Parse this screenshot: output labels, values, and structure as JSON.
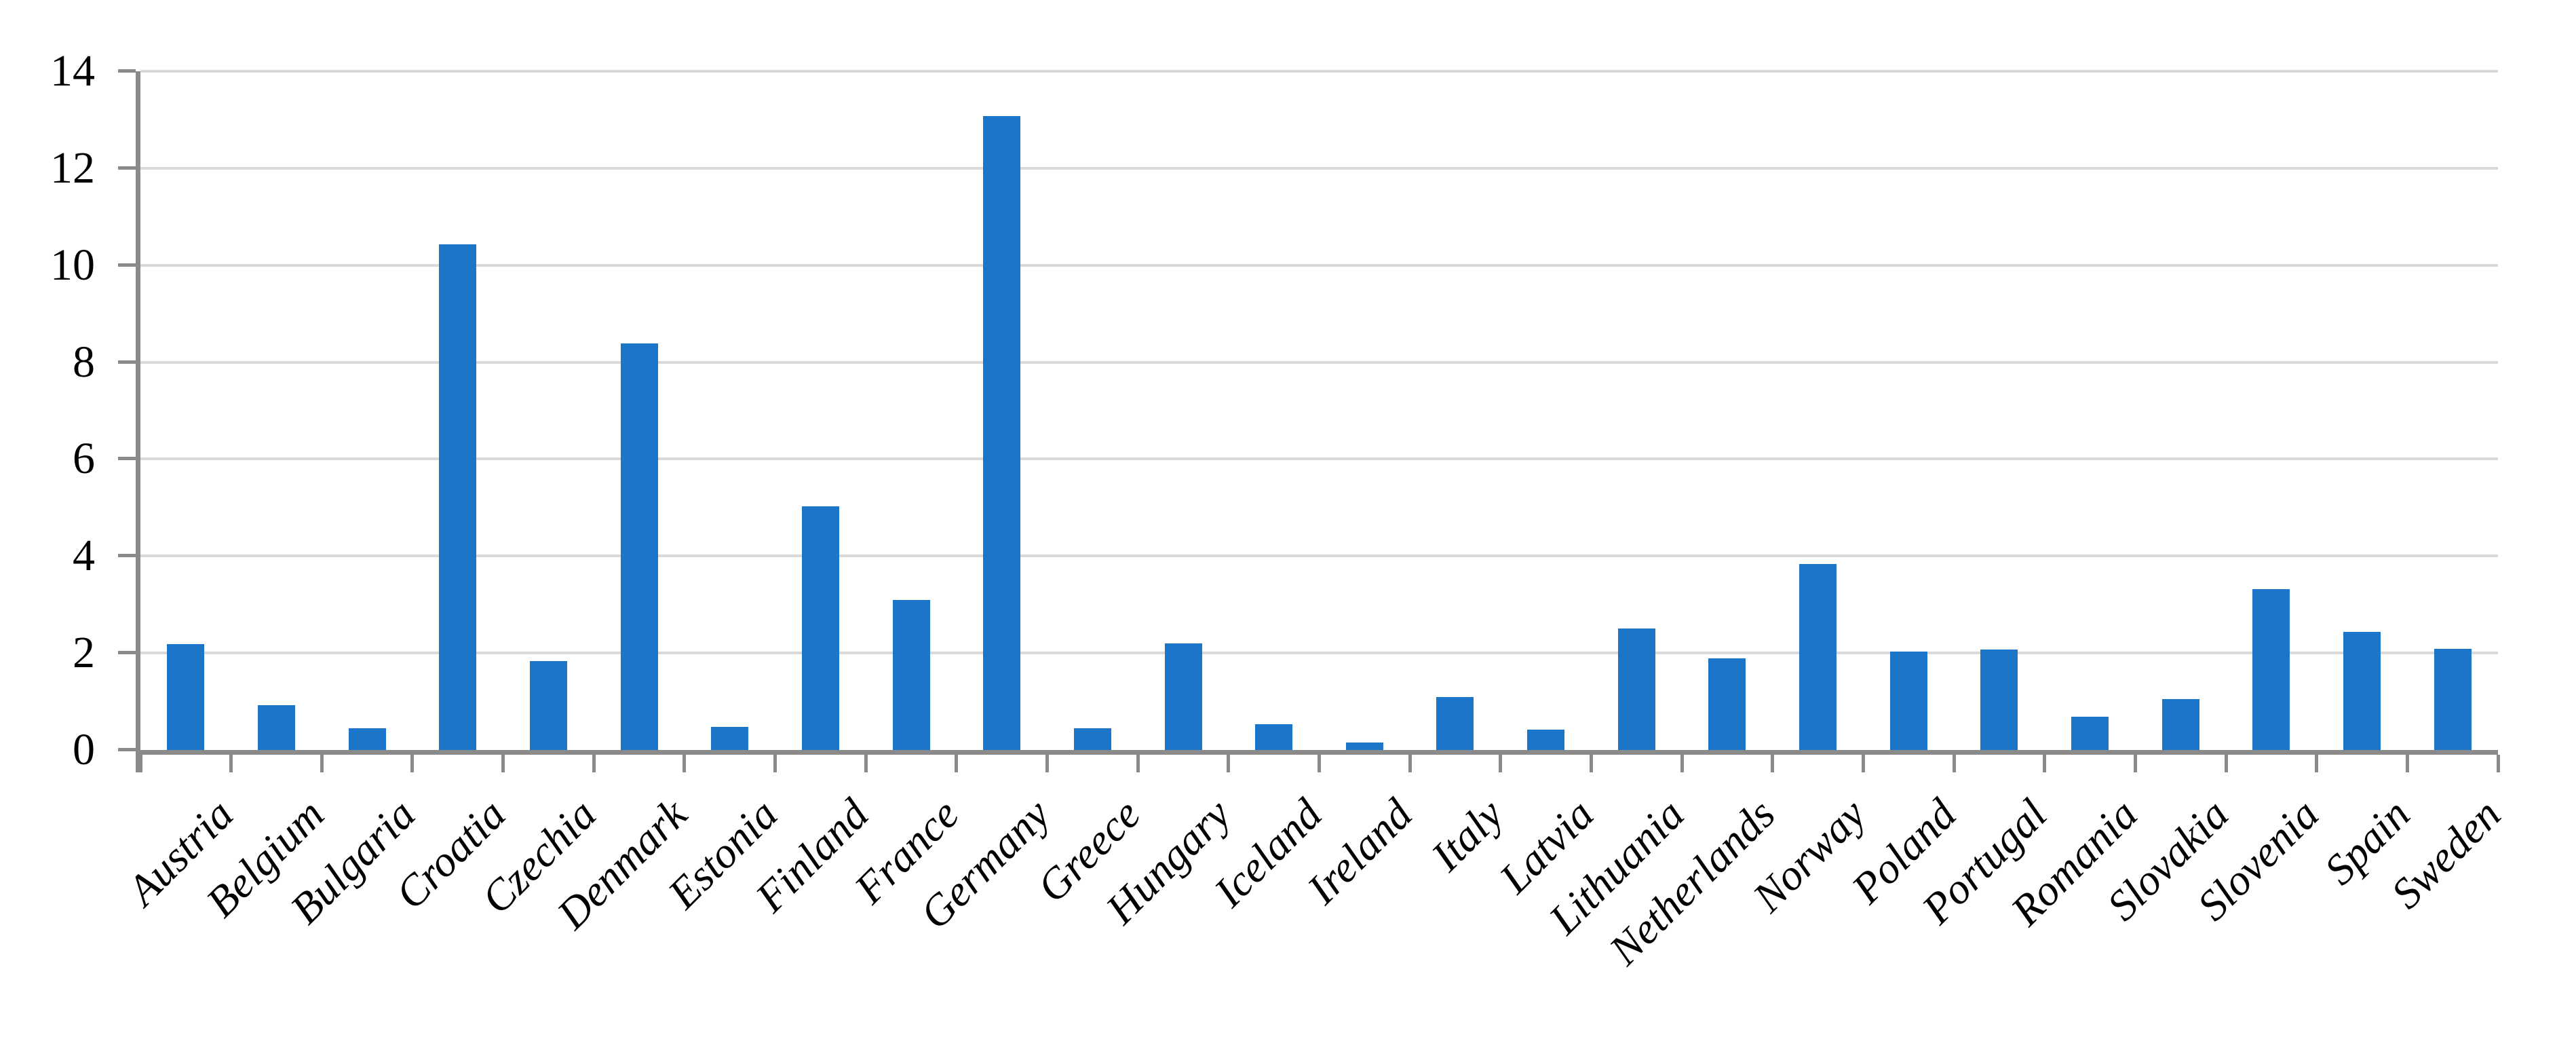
{
  "chart_data": {
    "type": "bar",
    "categories": [
      "Austria",
      "Belgium",
      "Bulgaria",
      "Croatia",
      "Czechia",
      "Denmark",
      "Estonia",
      "Finland",
      "France",
      "Germany",
      "Greece",
      "Hungary",
      "Iceland",
      "Ireland",
      "Italy",
      "Latvia",
      "Lithuania",
      "Netherlands",
      "Norway",
      "Poland",
      "Portugal",
      "Romania",
      "Slovakia",
      "Slovenia",
      "Spain",
      "Sweden"
    ],
    "values": [
      2.18,
      0.92,
      0.45,
      10.43,
      1.84,
      8.39,
      0.48,
      5.03,
      3.09,
      13.08,
      0.45,
      2.2,
      0.53,
      0.15,
      1.09,
      0.42,
      2.5,
      1.89,
      3.84,
      2.03,
      2.07,
      0.68,
      1.05,
      3.32,
      2.44,
      2.08
    ],
    "ylim": [
      0,
      14
    ],
    "yticks": [
      0,
      2,
      4,
      6,
      8,
      10,
      12,
      14
    ],
    "grid": true,
    "legend": false,
    "xlabel_rotation_deg": -45
  },
  "style": {
    "bar_color": "#1B75C8",
    "gridline_color": "#D9D9D9",
    "axis_color": "#8A8A8A",
    "frame_color": "#959595",
    "background": "#FFFFFF",
    "text_color": "#000000"
  }
}
